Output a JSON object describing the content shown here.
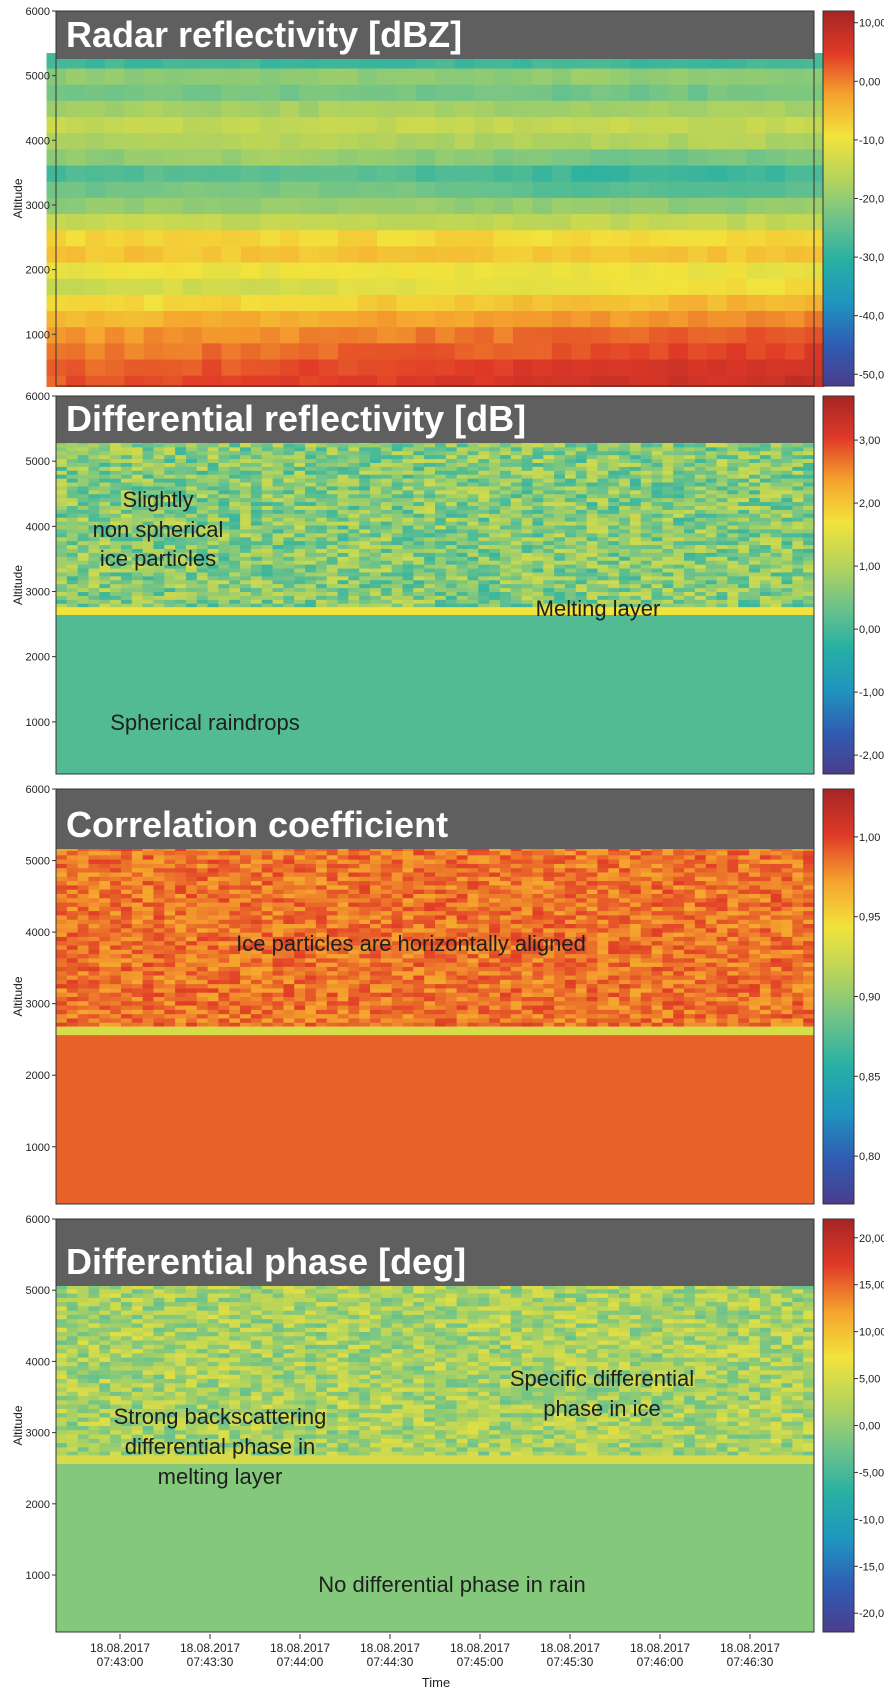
{
  "chart_data": [
    {
      "type": "heatmap",
      "title": "Radar reflectivity [dBZ]",
      "ylabel": "Altitude",
      "ylim": [
        200,
        6000
      ],
      "yticks": [
        "1000",
        "2000",
        "3000",
        "4000",
        "5000",
        "6000"
      ],
      "colorbar_ticks": [
        "10,00",
        "0,00",
        "-10,00",
        "-20,00",
        "-30,00",
        "-40,00",
        "-50,00"
      ],
      "colorbar_range": [
        -52,
        12
      ],
      "annotations": [],
      "top_of_echo_altitude": 5350,
      "rows": [
        {
          "y": 5250,
          "v": -28
        },
        {
          "y": 5000,
          "v": -20
        },
        {
          "y": 4750,
          "v": -23
        },
        {
          "y": 4500,
          "v": -18
        },
        {
          "y": 4250,
          "v": -15
        },
        {
          "y": 4000,
          "v": -17
        },
        {
          "y": 3750,
          "v": -21
        },
        {
          "y": 3500,
          "v": -27
        },
        {
          "y": 3250,
          "v": -24
        },
        {
          "y": 3000,
          "v": -20
        },
        {
          "y": 2750,
          "v": -15
        },
        {
          "y": 2500,
          "v": -8
        },
        {
          "y": 2250,
          "v": -6
        },
        {
          "y": 2000,
          "v": -10
        },
        {
          "y": 1750,
          "v": -14
        },
        {
          "y": 1500,
          "v": -9
        },
        {
          "y": 1250,
          "v": -5
        },
        {
          "y": 1000,
          "v": -2
        },
        {
          "y": 750,
          "v": 0
        },
        {
          "y": 500,
          "v": 2
        },
        {
          "y": 250,
          "v": 3
        }
      ]
    },
    {
      "type": "heatmap",
      "title": "Differential reflectivity [dB]",
      "ylabel": "Altitude",
      "ylim": [
        200,
        6000
      ],
      "yticks": [
        "1000",
        "2000",
        "3000",
        "4000",
        "5000",
        "6000"
      ],
      "colorbar_ticks": [
        "3,00",
        "2,00",
        "1,00",
        "0,00",
        "-1,00",
        "-2,00"
      ],
      "colorbar_range": [
        -2.3,
        3.7
      ],
      "annotations": [
        "Slightly",
        "non spherical",
        "ice particles",
        "Melting layer",
        "Spherical raindrops"
      ],
      "top_of_echo_altitude": 5350,
      "melting_layer_altitude": 2700,
      "ice_value": 0.6,
      "melting_layer_value": 1.7,
      "rain_value": 0.1
    },
    {
      "type": "heatmap",
      "title": "Correlation coefficient",
      "ylabel": "Altitude",
      "ylim": [
        200,
        6000
      ],
      "yticks": [
        "1000",
        "2000",
        "3000",
        "4000",
        "5000",
        "6000"
      ],
      "colorbar_ticks": [
        "1,00",
        "0,95",
        "0,90",
        "0,85",
        "0,80"
      ],
      "colorbar_range": [
        0.77,
        1.03
      ],
      "annotations": [
        "Ice particles are horizontally aligned"
      ],
      "top_of_echo_altitude": 5300,
      "melting_layer_altitude": 2620,
      "ice_value": 0.985,
      "melting_layer_value": 0.93,
      "rain_value": 0.99
    },
    {
      "type": "heatmap",
      "title": "Differential phase [deg]",
      "ylabel": "Altitude",
      "ylim": [
        200,
        6000
      ],
      "yticks": [
        "1000",
        "2000",
        "3000",
        "4000",
        "5000",
        "6000"
      ],
      "colorbar_ticks": [
        "20,00",
        "15,00",
        "10,00",
        "5,00",
        "0,00",
        "-5,00",
        "-10,00",
        "-15,00",
        "-20,00"
      ],
      "colorbar_range": [
        -22,
        22
      ],
      "annotations": [
        "Strong backscattering",
        "differential phase in",
        "melting layer",
        "Specific differential",
        "phase in ice",
        "No differential phase in rain"
      ],
      "top_of_echo_altitude": 5250,
      "melting_layer_altitude": 2620,
      "ice_value": 1.5,
      "melting_layer_value": 5,
      "rain_value": -1
    }
  ],
  "x_axis": {
    "label": "Time",
    "ticks": [
      [
        "18.08.2017",
        "07:43:00"
      ],
      [
        "18.08.2017",
        "07:43:30"
      ],
      [
        "18.08.2017",
        "07:44:00"
      ],
      [
        "18.08.2017",
        "07:44:30"
      ],
      [
        "18.08.2017",
        "07:45:00"
      ],
      [
        "18.08.2017",
        "07:45:30"
      ],
      [
        "18.08.2017",
        "07:46:00"
      ],
      [
        "18.08.2017",
        "07:46:30"
      ]
    ]
  },
  "colors": {
    "colormap": [
      "#4a3d8c",
      "#2f5db4",
      "#1f95bf",
      "#27b0a3",
      "#6ec38a",
      "#b7d45a",
      "#f2e33c",
      "#f5a22e",
      "#e03a27",
      "#a62525"
    ],
    "title_band": "#5f5f5f",
    "title_text": "#ffffff"
  }
}
